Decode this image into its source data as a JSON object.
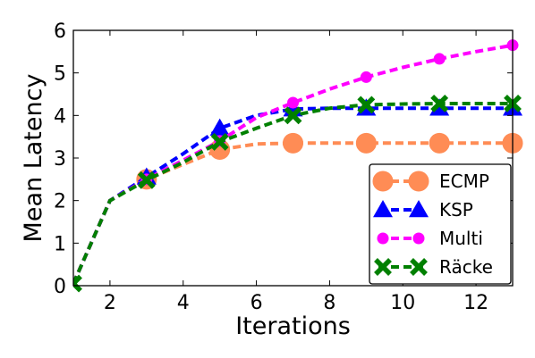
{
  "chart_data": {
    "type": "line",
    "xlabel": "Iterations",
    "ylabel": "Mean Latency",
    "xlim": [
      1,
      13
    ],
    "ylim": [
      0,
      6
    ],
    "xticks": [
      2,
      4,
      6,
      8,
      10,
      12
    ],
    "yticks": [
      0,
      1,
      2,
      3,
      4,
      5,
      6
    ],
    "grid": false,
    "legend_position": "bottom-right",
    "series": [
      {
        "name": "ECMP",
        "color": "#ff8c55",
        "marker": "circle-large",
        "line": "dashed",
        "x": [
          1,
          2,
          3,
          4,
          5,
          6,
          7,
          8,
          9,
          10,
          11,
          12,
          13
        ],
        "y": [
          0.05,
          2.0,
          2.5,
          2.85,
          3.2,
          3.33,
          3.35,
          3.35,
          3.35,
          3.35,
          3.35,
          3.35,
          3.35
        ],
        "marker_x": [
          3,
          5,
          7,
          9,
          11,
          13
        ]
      },
      {
        "name": "KSP",
        "color": "#0000ff",
        "marker": "triangle",
        "line": "dashed",
        "x": [
          1,
          2,
          3,
          4,
          5,
          6,
          7,
          8,
          9,
          10,
          11,
          12,
          13
        ],
        "y": [
          0.05,
          2.0,
          2.55,
          3.1,
          3.7,
          4.0,
          4.15,
          4.17,
          4.17,
          4.17,
          4.17,
          4.17,
          4.17
        ],
        "marker_x": [
          3,
          5,
          7,
          9,
          11,
          13
        ]
      },
      {
        "name": "Multi",
        "color": "#ff00ff",
        "marker": "circle-small",
        "line": "dashed",
        "x": [
          1,
          2,
          3,
          4,
          5,
          6,
          7,
          8,
          9,
          10,
          11,
          12,
          13
        ],
        "y": [
          0.05,
          2.0,
          2.5,
          2.95,
          3.4,
          3.95,
          4.3,
          4.62,
          4.9,
          5.13,
          5.33,
          5.5,
          5.65
        ],
        "marker_x": [
          3,
          5,
          7,
          9,
          11,
          13
        ]
      },
      {
        "name": "Räcke",
        "color": "#008000",
        "marker": "x",
        "line": "dashed",
        "x": [
          1,
          2,
          3,
          4,
          5,
          6,
          7,
          8,
          9,
          10,
          11,
          12,
          13
        ],
        "y": [
          0.05,
          2.0,
          2.48,
          2.9,
          3.38,
          3.7,
          4.0,
          4.17,
          4.25,
          4.27,
          4.28,
          4.28,
          4.28
        ],
        "marker_x": [
          1,
          3,
          5,
          7,
          9,
          11,
          13
        ]
      }
    ]
  }
}
